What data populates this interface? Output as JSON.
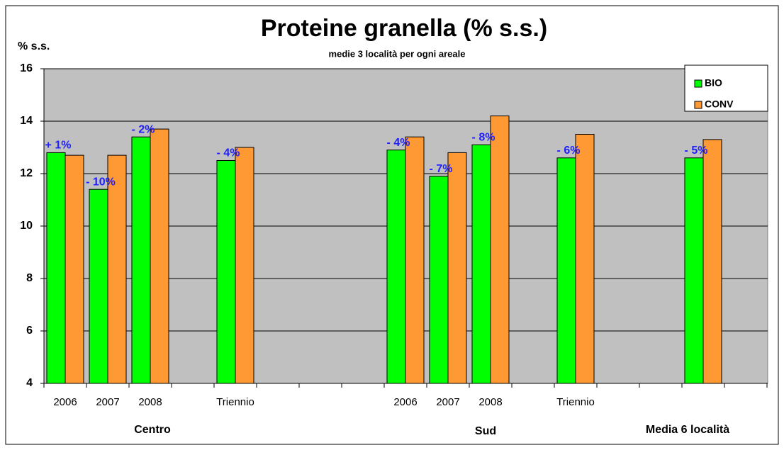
{
  "chart_data": {
    "type": "bar",
    "title": "Proteine granella (% s.s.)",
    "subtitle": "medie 3 località  per ogni areale",
    "y_label": "% s.s.",
    "categories": [
      "2006",
      "2007",
      "2008",
      null,
      "Triennio",
      null,
      null,
      null,
      "2006",
      "2007",
      "2008",
      null,
      "Triennio",
      null,
      null,
      null,
      null
    ],
    "groups": [
      "Centro",
      "Sud",
      "Media 6 località"
    ],
    "series": [
      {
        "name": "BIO",
        "color": "#00ff00",
        "values": [
          12.8,
          11.4,
          13.4,
          null,
          12.5,
          null,
          null,
          null,
          12.9,
          11.9,
          13.1,
          null,
          12.6,
          null,
          null,
          12.6,
          null
        ]
      },
      {
        "name": "CONV",
        "color": "#ff9933",
        "values": [
          12.7,
          12.7,
          13.7,
          null,
          13.0,
          null,
          null,
          null,
          13.4,
          12.8,
          14.2,
          null,
          13.5,
          null,
          null,
          13.3,
          null
        ]
      }
    ],
    "annotations": [
      "+ 1%",
      "- 10%",
      "- 2%",
      null,
      "- 4%",
      null,
      null,
      null,
      "- 4%",
      "- 7%",
      "- 8%",
      null,
      "- 6%",
      null,
      null,
      "- 5%",
      null
    ],
    "ylim": [
      4,
      16
    ],
    "yticks": [
      4,
      6,
      8,
      10,
      12,
      14,
      16
    ],
    "grid": true,
    "legend": "top-right"
  }
}
